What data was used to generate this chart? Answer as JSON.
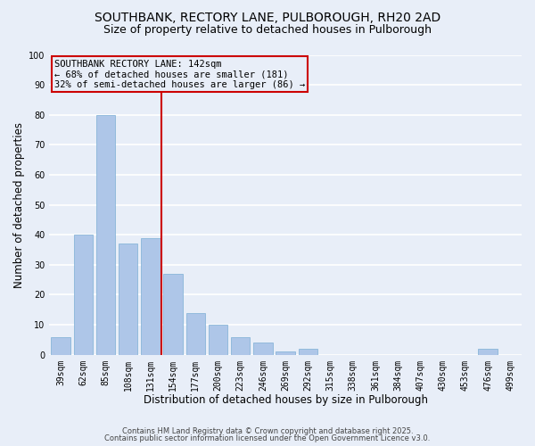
{
  "title1": "SOUTHBANK, RECTORY LANE, PULBOROUGH, RH20 2AD",
  "title2": "Size of property relative to detached houses in Pulborough",
  "xlabel": "Distribution of detached houses by size in Pulborough",
  "ylabel": "Number of detached properties",
  "bar_labels": [
    "39sqm",
    "62sqm",
    "85sqm",
    "108sqm",
    "131sqm",
    "154sqm",
    "177sqm",
    "200sqm",
    "223sqm",
    "246sqm",
    "269sqm",
    "292sqm",
    "315sqm",
    "338sqm",
    "361sqm",
    "384sqm",
    "407sqm",
    "430sqm",
    "453sqm",
    "476sqm",
    "499sqm"
  ],
  "bar_values": [
    6,
    40,
    80,
    37,
    39,
    27,
    14,
    10,
    6,
    4,
    1,
    2,
    0,
    0,
    0,
    0,
    0,
    0,
    0,
    2,
    0
  ],
  "bar_color": "#aec6e8",
  "bar_edge_color": "#7bafd4",
  "background_color": "#e8eef8",
  "grid_color": "#ffffff",
  "vline_x_index": 4.5,
  "annotation_line_label": "SOUTHBANK RECTORY LANE: 142sqm",
  "annotation_text_line2": "← 68% of detached houses are smaller (181)",
  "annotation_text_line3": "32% of semi-detached houses are larger (86) →",
  "annotation_box_edge_color": "#cc0000",
  "vline_color": "#cc0000",
  "ylim": [
    0,
    100
  ],
  "yticks": [
    0,
    10,
    20,
    30,
    40,
    50,
    60,
    70,
    80,
    90,
    100
  ],
  "footer1": "Contains HM Land Registry data © Crown copyright and database right 2025.",
  "footer2": "Contains public sector information licensed under the Open Government Licence v3.0.",
  "title_fontsize": 10,
  "subtitle_fontsize": 9,
  "axis_label_fontsize": 8.5,
  "tick_fontsize": 7,
  "annotation_fontsize": 7.5,
  "footer_fontsize": 6
}
